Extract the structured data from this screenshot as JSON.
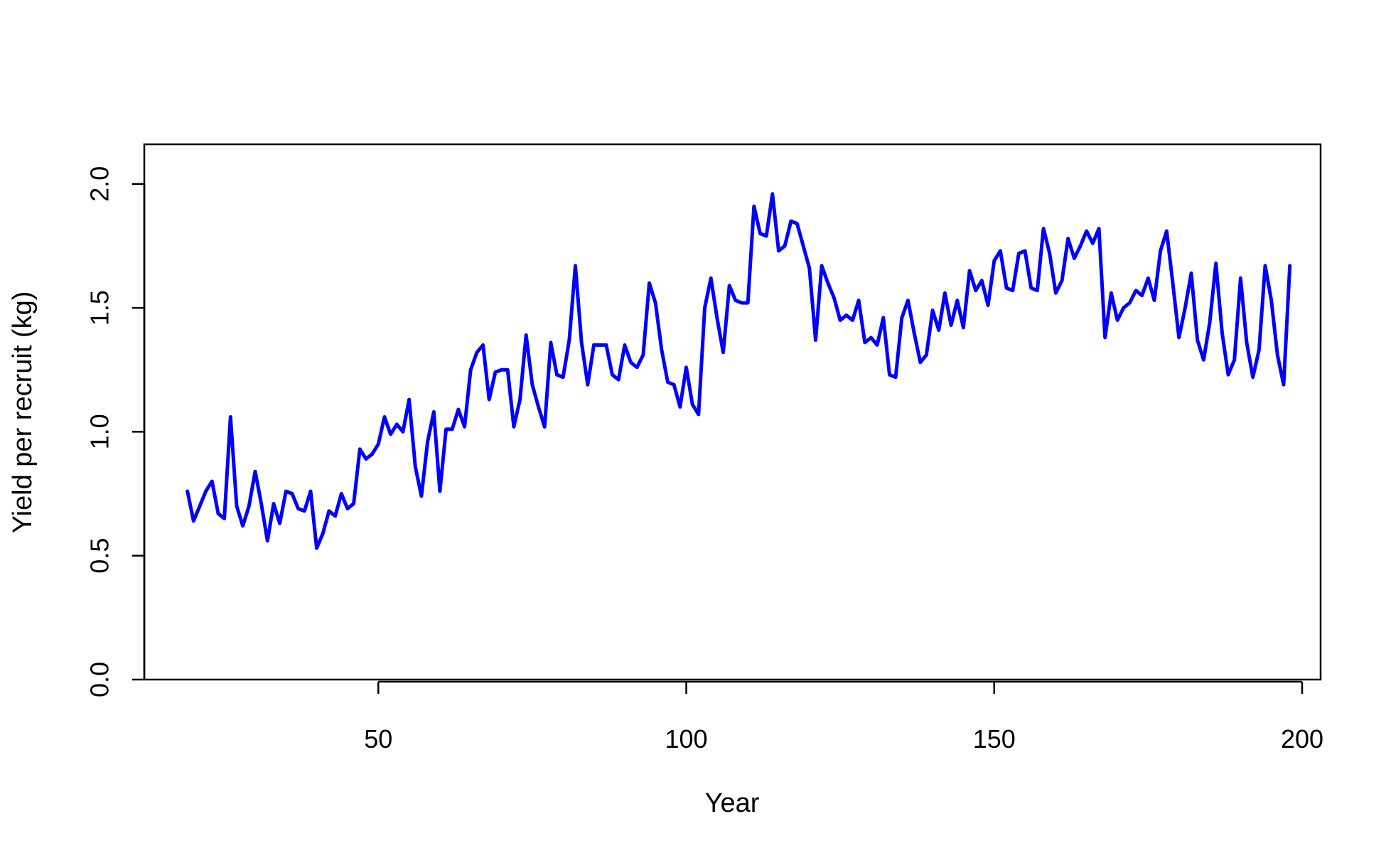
{
  "chart_data": {
    "type": "line",
    "title": "",
    "xlabel": "Year",
    "ylabel": "Yield per recruit (kg)",
    "xlim": [
      12,
      203
    ],
    "ylim": [
      0,
      2.16
    ],
    "xticks": [
      50,
      100,
      150,
      200
    ],
    "xtick_labels": [
      "50",
      "100",
      "150",
      "200"
    ],
    "yticks": [
      0,
      0.5,
      1,
      1.5,
      2
    ],
    "ytick_labels": [
      "0.0",
      "0.5",
      "1.0",
      "1.5",
      "2.0"
    ],
    "grid": false,
    "legend": "none",
    "series": [
      {
        "color": "#0000ff",
        "x_start": 19,
        "x_step": 1,
        "values": [
          0.76,
          0.64,
          0.7,
          0.76,
          0.8,
          0.67,
          0.65,
          1.06,
          0.7,
          0.62,
          0.7,
          0.84,
          0.71,
          0.56,
          0.71,
          0.63,
          0.76,
          0.75,
          0.69,
          0.68,
          0.76,
          0.53,
          0.59,
          0.68,
          0.66,
          0.75,
          0.69,
          0.71,
          0.93,
          0.89,
          0.91,
          0.95,
          1.06,
          0.99,
          1.03,
          1.0,
          1.13,
          0.86,
          0.74,
          0.96,
          1.08,
          0.76,
          1.01,
          1.01,
          1.09,
          1.02,
          1.25,
          1.32,
          1.35,
          1.13,
          1.24,
          1.25,
          1.25,
          1.02,
          1.13,
          1.39,
          1.19,
          1.1,
          1.02,
          1.36,
          1.23,
          1.22,
          1.37,
          1.67,
          1.36,
          1.19,
          1.35,
          1.35,
          1.35,
          1.23,
          1.21,
          1.35,
          1.28,
          1.26,
          1.31,
          1.6,
          1.52,
          1.33,
          1.2,
          1.19,
          1.1,
          1.26,
          1.11,
          1.07,
          1.5,
          1.62,
          1.46,
          1.32,
          1.59,
          1.53,
          1.52,
          1.52,
          1.91,
          1.8,
          1.79,
          1.96,
          1.73,
          1.75,
          1.85,
          1.84,
          1.75,
          1.66,
          1.37,
          1.67,
          1.6,
          1.54,
          1.45,
          1.47,
          1.45,
          1.53,
          1.36,
          1.38,
          1.35,
          1.46,
          1.23,
          1.22,
          1.46,
          1.53,
          1.4,
          1.28,
          1.31,
          1.49,
          1.41,
          1.56,
          1.43,
          1.53,
          1.42,
          1.65,
          1.57,
          1.61,
          1.51,
          1.69,
          1.73,
          1.58,
          1.57,
          1.72,
          1.73,
          1.58,
          1.57,
          1.82,
          1.72,
          1.56,
          1.61,
          1.78,
          1.7,
          1.75,
          1.81,
          1.76,
          1.82,
          1.38,
          1.56,
          1.45,
          1.5,
          1.52,
          1.57,
          1.55,
          1.62,
          1.53,
          1.73,
          1.81,
          1.6,
          1.38,
          1.5,
          1.64,
          1.37,
          1.29,
          1.44,
          1.68,
          1.4,
          1.23,
          1.29,
          1.62,
          1.36,
          1.22,
          1.33,
          1.67,
          1.53,
          1.31,
          1.19,
          1.67
        ]
      }
    ]
  }
}
